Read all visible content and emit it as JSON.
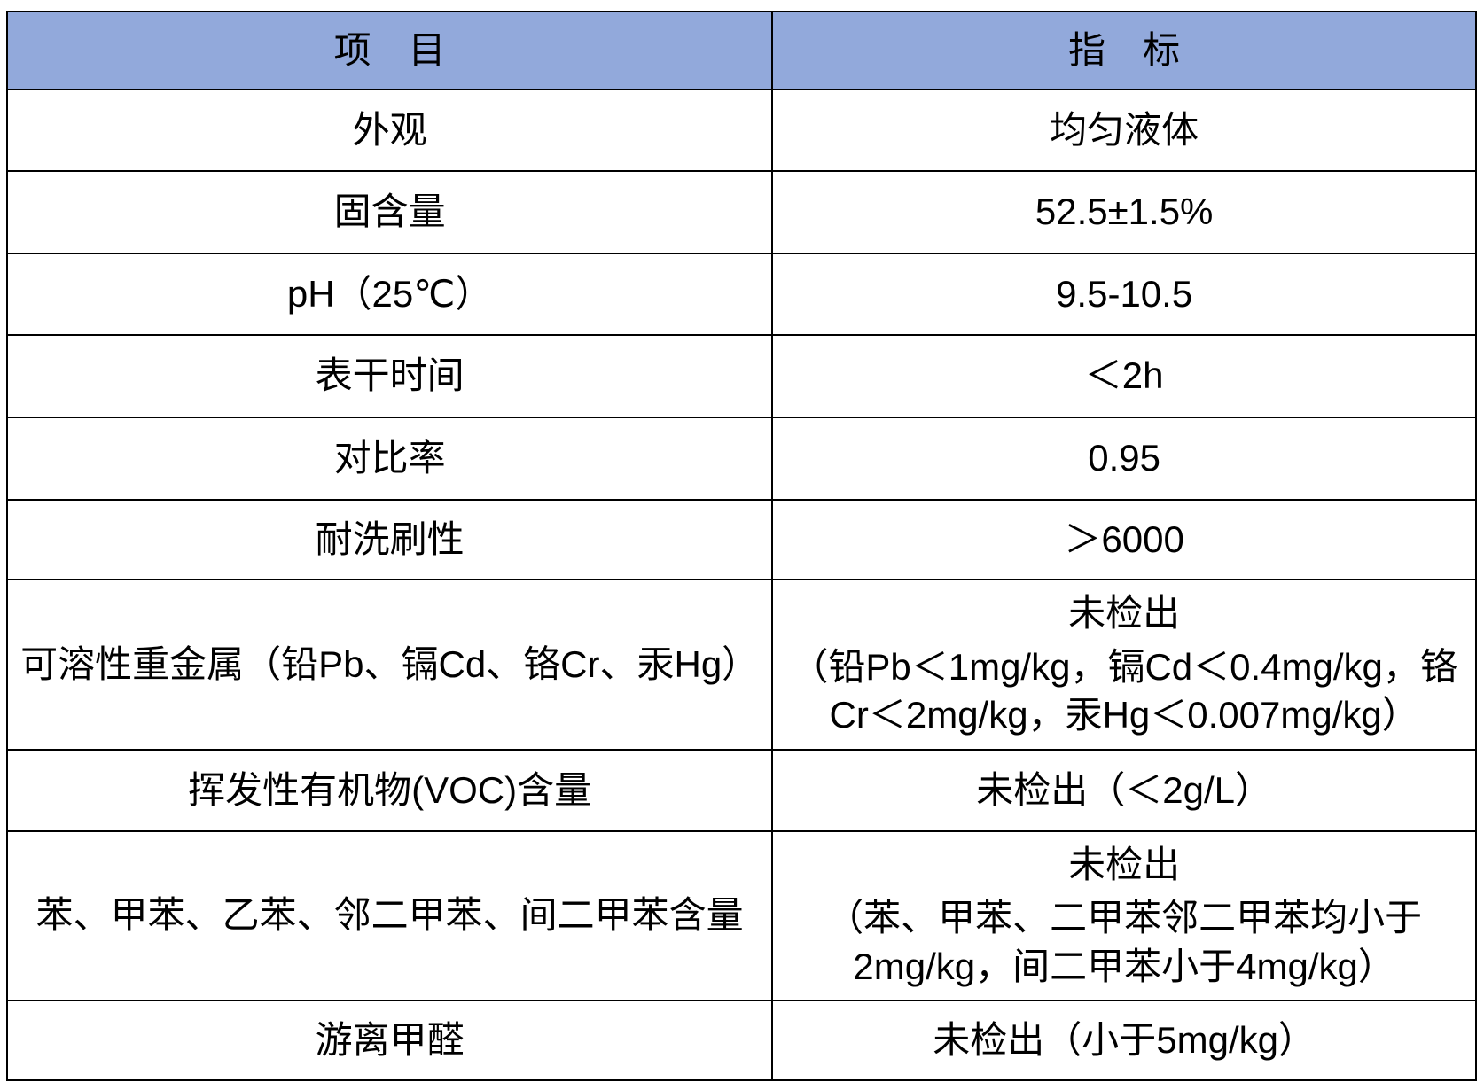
{
  "colors": {
    "header_bg": "#92A9DB",
    "border": "#000000",
    "text": "#000000",
    "page_bg": "#FFFFFF"
  },
  "table": {
    "header": {
      "item": "项　目",
      "indicator": "指　标"
    },
    "rows": [
      {
        "item": "外观",
        "indicator": "均匀液体"
      },
      {
        "item": "固含量",
        "indicator": "52.5±1.5%"
      },
      {
        "item": "pH（25℃）",
        "indicator": "9.5-10.5"
      },
      {
        "item": "表干时间",
        "indicator": "＜2h"
      },
      {
        "item": "对比率",
        "indicator": "0.95"
      },
      {
        "item": "耐洗刷性",
        "indicator": "＞6000"
      },
      {
        "item": "可溶性重金属（铅Pb、镉Cd、铬Cr、汞Hg）",
        "indicator": "未检出",
        "detail": "（铅Pb＜1mg/kg，镉Cd＜0.4mg/kg，铬Cr＜2mg/kg，汞Hg＜0.007mg/kg）"
      },
      {
        "item": "挥发性有机物(VOC)含量",
        "indicator": "未检出（＜2g/L）"
      },
      {
        "item": "苯、甲苯、乙苯、邻二甲苯、间二甲苯含量",
        "indicator": "未检出",
        "detail": "（苯、甲苯、二甲苯邻二甲苯均小于2mg/kg，间二甲苯小于4mg/kg）"
      },
      {
        "item": "游离甲醛",
        "indicator": "未检出（小于5mg/kg）"
      }
    ]
  }
}
